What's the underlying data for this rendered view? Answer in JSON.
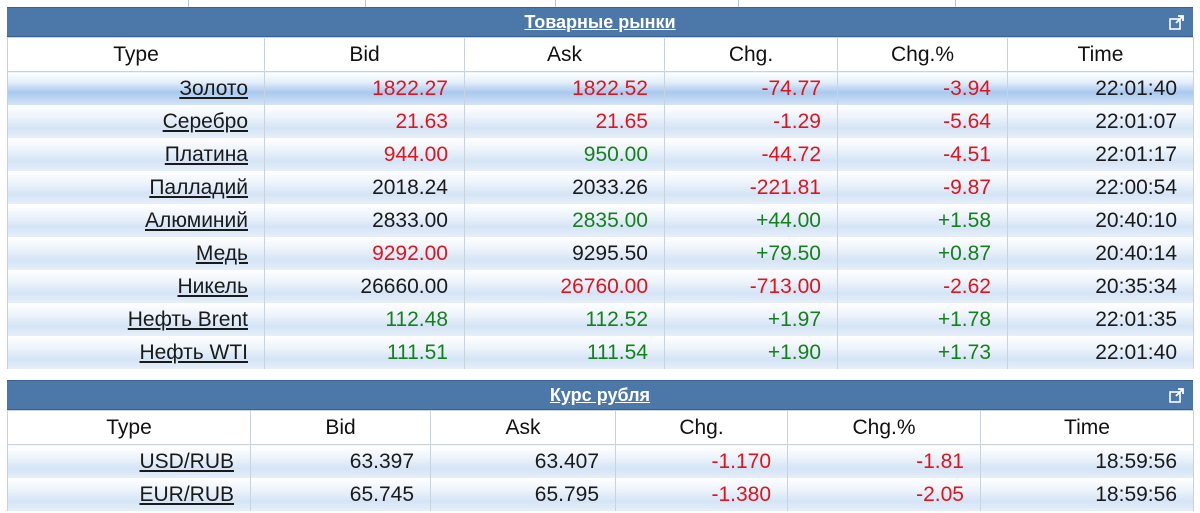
{
  "commodities": {
    "title": "Товарные рынки",
    "columns": [
      "Type",
      "Bid",
      "Ask",
      "Chg.",
      "Chg.%",
      "Time"
    ],
    "rows": [
      {
        "name": "Золото",
        "bid": "1822.27",
        "ask": "1822.52",
        "chg": "-74.77",
        "chgp": "-3.94",
        "time": "22:01:40",
        "bid_c": "red",
        "ask_c": "red",
        "chg_c": "red"
      },
      {
        "name": "Серебро",
        "bid": "21.63",
        "ask": "21.65",
        "chg": "-1.29",
        "chgp": "-5.64",
        "time": "22:01:07",
        "bid_c": "red",
        "ask_c": "red",
        "chg_c": "red"
      },
      {
        "name": "Платина",
        "bid": "944.00",
        "ask": "950.00",
        "chg": "-44.72",
        "chgp": "-4.51",
        "time": "22:01:17",
        "bid_c": "red",
        "ask_c": "green",
        "chg_c": "red"
      },
      {
        "name": "Палладий",
        "bid": "2018.24",
        "ask": "2033.26",
        "chg": "-221.81",
        "chgp": "-9.87",
        "time": "22:00:54",
        "bid_c": "black",
        "ask_c": "black",
        "chg_c": "red"
      },
      {
        "name": "Алюминий",
        "bid": "2833.00",
        "ask": "2835.00",
        "chg": "+44.00",
        "chgp": "+1.58",
        "time": "20:40:10",
        "bid_c": "black",
        "ask_c": "green",
        "chg_c": "green"
      },
      {
        "name": "Медь",
        "bid": "9292.00",
        "ask": "9295.50",
        "chg": "+79.50",
        "chgp": "+0.87",
        "time": "20:40:14",
        "bid_c": "red",
        "ask_c": "black",
        "chg_c": "green"
      },
      {
        "name": "Никель",
        "bid": "26660.00",
        "ask": "26760.00",
        "chg": "-713.00",
        "chgp": "-2.62",
        "time": "20:35:34",
        "bid_c": "black",
        "ask_c": "red",
        "chg_c": "red"
      },
      {
        "name": "Нефть Brent",
        "bid": "112.48",
        "ask": "112.52",
        "chg": "+1.97",
        "chgp": "+1.78",
        "time": "22:01:35",
        "bid_c": "green",
        "ask_c": "green",
        "chg_c": "green"
      },
      {
        "name": "Нефть WTI",
        "bid": "111.51",
        "ask": "111.54",
        "chg": "+1.90",
        "chgp": "+1.73",
        "time": "22:01:40",
        "bid_c": "green",
        "ask_c": "green",
        "chg_c": "green"
      }
    ]
  },
  "ruble": {
    "title": "Курс рубля",
    "columns": [
      "Type",
      "Bid",
      "Ask",
      "Chg.",
      "Chg.%",
      "Time"
    ],
    "rows": [
      {
        "name": "USD/RUB",
        "bid": "63.397",
        "ask": "63.407",
        "chg": "-1.170",
        "chgp": "-1.81",
        "time": "18:59:56",
        "bid_c": "black",
        "ask_c": "black",
        "chg_c": "red"
      },
      {
        "name": "EUR/RUB",
        "bid": "65.745",
        "ask": "65.795",
        "chg": "-1.380",
        "chgp": "-2.05",
        "time": "18:59:56",
        "bid_c": "black",
        "ask_c": "black",
        "chg_c": "red"
      }
    ]
  },
  "colors": {
    "header_bg": "#4b78a8",
    "negative": "#e0141e",
    "positive": "#17801e"
  },
  "icons": {
    "expand": "external-link-icon"
  }
}
